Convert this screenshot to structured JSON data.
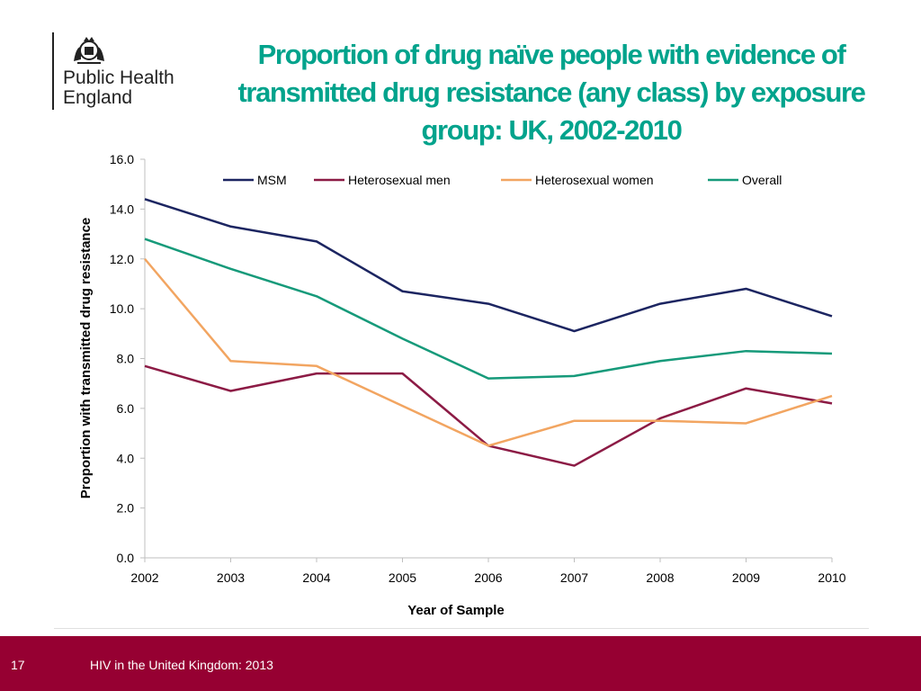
{
  "org": {
    "line1": "Public Health",
    "line2": "England",
    "logo_icon": "royal-crest-icon"
  },
  "title": "Proportion of drug naïve people with evidence of transmitted drug resistance (any class) by exposure group: UK, 2002-2010",
  "footer": {
    "page_number": "17",
    "text": "HIV in the United Kingdom: 2013"
  },
  "chart_data": {
    "type": "line",
    "xlabel": "Year of Sample",
    "ylabel": "Proportion with transmitted drug resistance",
    "x": [
      "2002",
      "2003",
      "2004",
      "2005",
      "2006",
      "2007",
      "2008",
      "2009",
      "2010"
    ],
    "ylim": [
      0,
      16
    ],
    "yticks": [
      "0.0",
      "2.0",
      "4.0",
      "6.0",
      "8.0",
      "10.0",
      "12.0",
      "14.0",
      "16.0"
    ],
    "grid": false,
    "legend": "top",
    "series": [
      {
        "name": "MSM",
        "color": "#1c2561",
        "values": [
          14.4,
          13.3,
          12.7,
          10.7,
          10.2,
          9.1,
          10.2,
          10.8,
          9.7
        ]
      },
      {
        "name": "Heterosexual men",
        "color": "#8c1b45",
        "values": [
          7.7,
          6.7,
          7.4,
          7.4,
          4.5,
          3.7,
          5.6,
          6.8,
          6.2
        ]
      },
      {
        "name": "Heterosexual women",
        "color": "#f2a561",
        "values": [
          12.0,
          7.9,
          7.7,
          6.1,
          4.5,
          5.5,
          5.5,
          5.4,
          6.5
        ]
      },
      {
        "name": "Overall",
        "color": "#169a7a",
        "values": [
          12.8,
          11.6,
          10.5,
          8.8,
          7.2,
          7.3,
          7.9,
          8.3,
          8.2
        ]
      }
    ]
  }
}
